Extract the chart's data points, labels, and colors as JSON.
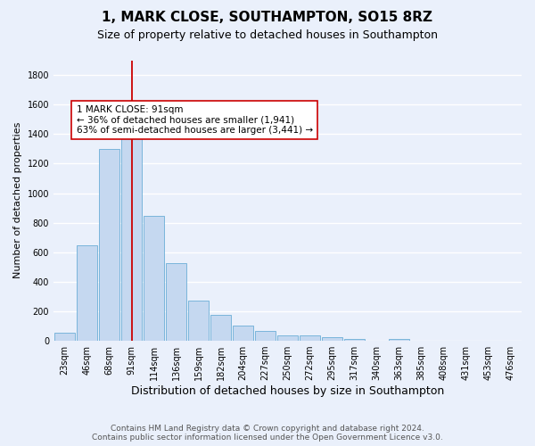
{
  "title": "1, MARK CLOSE, SOUTHAMPTON, SO15 8RZ",
  "subtitle": "Size of property relative to detached houses in Southampton",
  "xlabel": "Distribution of detached houses by size in Southampton",
  "ylabel": "Number of detached properties",
  "categories": [
    "23sqm",
    "46sqm",
    "68sqm",
    "91sqm",
    "114sqm",
    "136sqm",
    "159sqm",
    "182sqm",
    "204sqm",
    "227sqm",
    "250sqm",
    "272sqm",
    "295sqm",
    "317sqm",
    "340sqm",
    "363sqm",
    "385sqm",
    "408sqm",
    "431sqm",
    "453sqm",
    "476sqm"
  ],
  "values": [
    55,
    645,
    1300,
    1370,
    845,
    525,
    275,
    175,
    105,
    65,
    35,
    35,
    25,
    12,
    0,
    10,
    0,
    0,
    0,
    0,
    0
  ],
  "bar_color": "#c5d8f0",
  "bar_edge_color": "#6baed6",
  "background_color": "#eaf0fb",
  "grid_color": "#ffffff",
  "vline_x": 3.0,
  "vline_color": "#cc0000",
  "annotation_text": "1 MARK CLOSE: 91sqm\n← 36% of detached houses are smaller (1,941)\n63% of semi-detached houses are larger (3,441) →",
  "annotation_box_color": "#ffffff",
  "annotation_box_edge": "#cc0000",
  "annotation_fontsize": 7.5,
  "ylim": [
    0,
    1900
  ],
  "yticks": [
    0,
    200,
    400,
    600,
    800,
    1000,
    1200,
    1400,
    1600,
    1800
  ],
  "footer_line1": "Contains HM Land Registry data © Crown copyright and database right 2024.",
  "footer_line2": "Contains public sector information licensed under the Open Government Licence v3.0.",
  "title_fontsize": 11,
  "subtitle_fontsize": 9,
  "xlabel_fontsize": 9,
  "ylabel_fontsize": 8,
  "tick_fontsize": 7,
  "footer_fontsize": 6.5
}
